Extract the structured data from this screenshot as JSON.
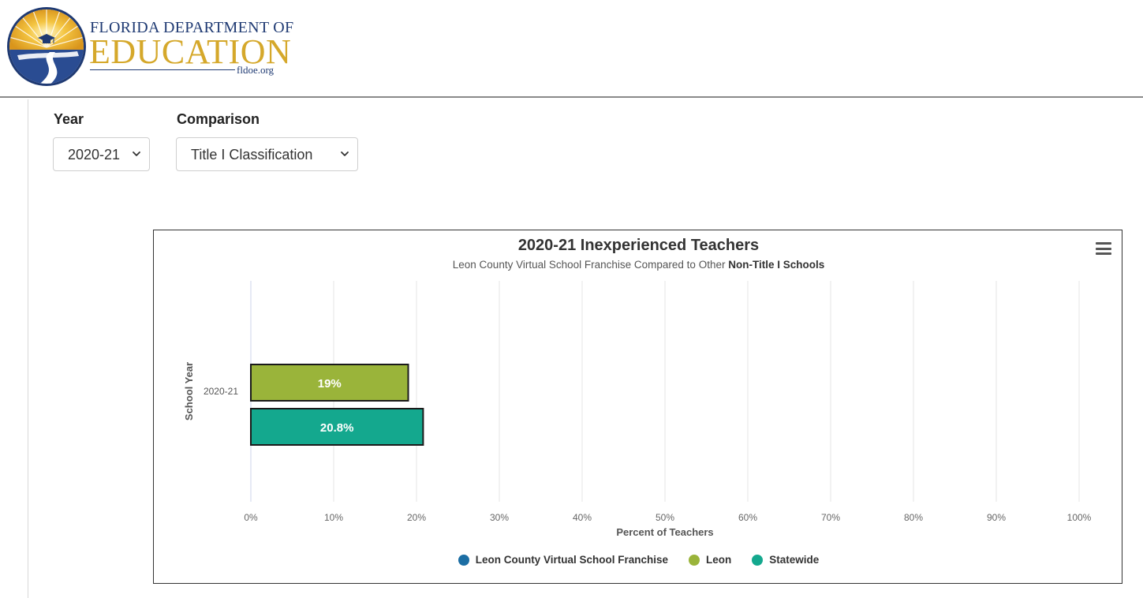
{
  "header": {
    "brand_line1": "Florida Department of",
    "brand_line2": "EDUCATION",
    "brand_url": "fldoe.org"
  },
  "filters": {
    "year_label": "Year",
    "year_value": "2020-21",
    "comparison_label": "Comparison",
    "comparison_value": "Title I Classification"
  },
  "chart": {
    "subtitle_prefix": "Leon County Virtual School Franchise Compared to Other ",
    "subtitle_bold": "Non-Title I Schools"
  },
  "chart_data": {
    "type": "bar",
    "orientation": "horizontal",
    "title": "2020-21 Inexperienced Teachers",
    "xlabel": "Percent of Teachers",
    "ylabel": "School Year",
    "categories": [
      "2020-21"
    ],
    "xlim": [
      0,
      100
    ],
    "xticks": [
      "0%",
      "10%",
      "20%",
      "30%",
      "40%",
      "50%",
      "60%",
      "70%",
      "80%",
      "90%",
      "100%"
    ],
    "grid": true,
    "legend_position": "bottom-center",
    "series": [
      {
        "name": "Leon County Virtual School Franchise",
        "color": "#1c6ea4",
        "values": [
          null
        ]
      },
      {
        "name": "Leon",
        "color": "#9ab43a",
        "values": [
          19
        ],
        "data_labels": [
          "19%"
        ]
      },
      {
        "name": "Statewide",
        "color": "#14a88e",
        "values": [
          20.8
        ],
        "data_labels": [
          "20.8%"
        ]
      }
    ]
  }
}
